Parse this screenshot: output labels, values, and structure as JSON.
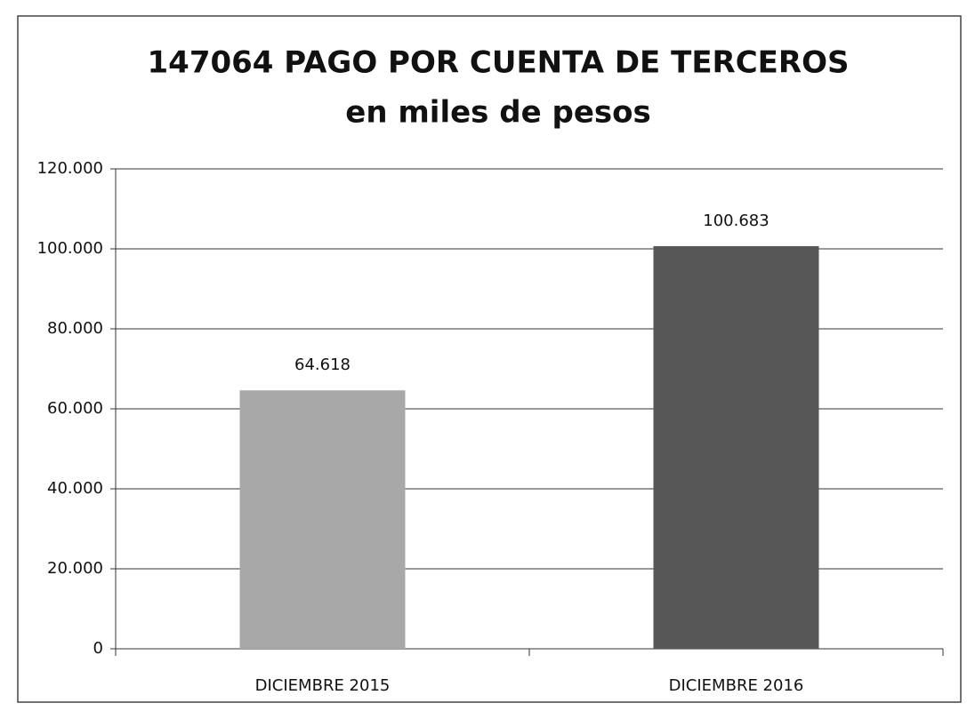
{
  "chart_data": {
    "type": "bar",
    "title": "147064 PAGO POR CUENTA  DE TERCEROS",
    "subtitle": "en miles de pesos",
    "categories": [
      "DICIEMBRE  2015",
      "DICIEMBRE  2016"
    ],
    "values": [
      64618,
      100683
    ],
    "value_labels": [
      "64.618",
      "100.683"
    ],
    "colors": [
      "#a8a8a8",
      "#575757"
    ],
    "ylim": [
      0,
      120000
    ],
    "yticks": [
      0,
      {
        "value": 20000,
        "label": "20.000"
      },
      {
        "value": 40000,
        "label": "40.000"
      },
      {
        "value": 60000,
        "label": "60.000"
      },
      {
        "value": 80000,
        "label": "80.000"
      },
      {
        "value": 100000,
        "label": "100.000"
      },
      {
        "value": 120000,
        "label": "120.000"
      }
    ],
    "grid": true
  }
}
